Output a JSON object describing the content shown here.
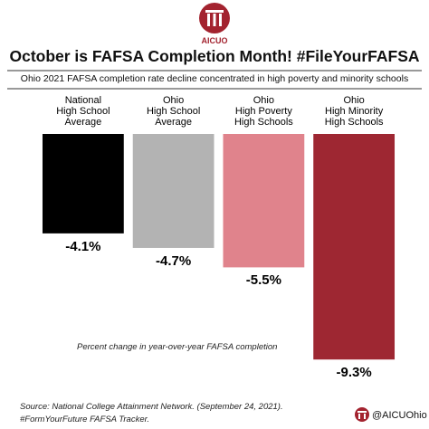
{
  "logo_text": "AICUO",
  "chart_data": {
    "type": "bar",
    "title": "October is FAFSA Completion Month! #FileYourFAFSA",
    "subtitle": "Ohio 2021 FAFSA completion rate decline concentrated in high poverty and minority schools",
    "categories": [
      "National\nHigh School\nAverage",
      "Ohio\nHigh School\nAverage",
      "Ohio\nHigh Poverty\nHigh Schools",
      "Ohio\nHigh Minority\nHigh Schools"
    ],
    "values": [
      -4.1,
      -4.7,
      -5.5,
      -9.3
    ],
    "value_labels": [
      "-4.1%",
      "-4.7%",
      "-5.5%",
      "-9.3%"
    ],
    "colors": [
      "#000000",
      "#b3b3b3",
      "#e0838c",
      "#9e2732"
    ],
    "ylim": [
      -10,
      0
    ],
    "annotation": "Percent change in year-over-year FAFSA completion",
    "source": [
      "Source: National College Attainment Network. (September 24, 2021).",
      "#FormYourFuture FAFSA Tracker."
    ],
    "handle": "@AICUOhio"
  }
}
